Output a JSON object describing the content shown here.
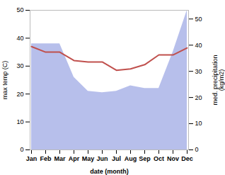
{
  "chart_data": {
    "type": "line",
    "categories": [
      "Jan",
      "Feb",
      "Mar",
      "Apr",
      "May",
      "Jun",
      "Jul",
      "Aug",
      "Sep",
      "Oct",
      "Nov",
      "Dec"
    ],
    "series": [
      {
        "type": "area",
        "color": "#aab4e8",
        "values": [
          38,
          38,
          38,
          26,
          21,
          20.5,
          21,
          23,
          22,
          22,
          35,
          50
        ]
      },
      {
        "type": "line",
        "color": "#c0504d",
        "values": [
          37,
          35,
          35,
          32,
          31.5,
          31.5,
          28.5,
          29,
          30.5,
          34,
          34,
          36.5
        ]
      }
    ],
    "xlabel": "date (month)",
    "ylabel": "max temp (C)",
    "y2label": "med. precipitation\n(kg/m2)",
    "ylim": [
      0,
      50
    ],
    "yticks": [
      0,
      10,
      20,
      30,
      40,
      50
    ],
    "y2lim": [
      0,
      53.33
    ],
    "y2ticks": [
      0,
      10,
      20,
      30,
      40,
      50
    ],
    "grid": false
  }
}
